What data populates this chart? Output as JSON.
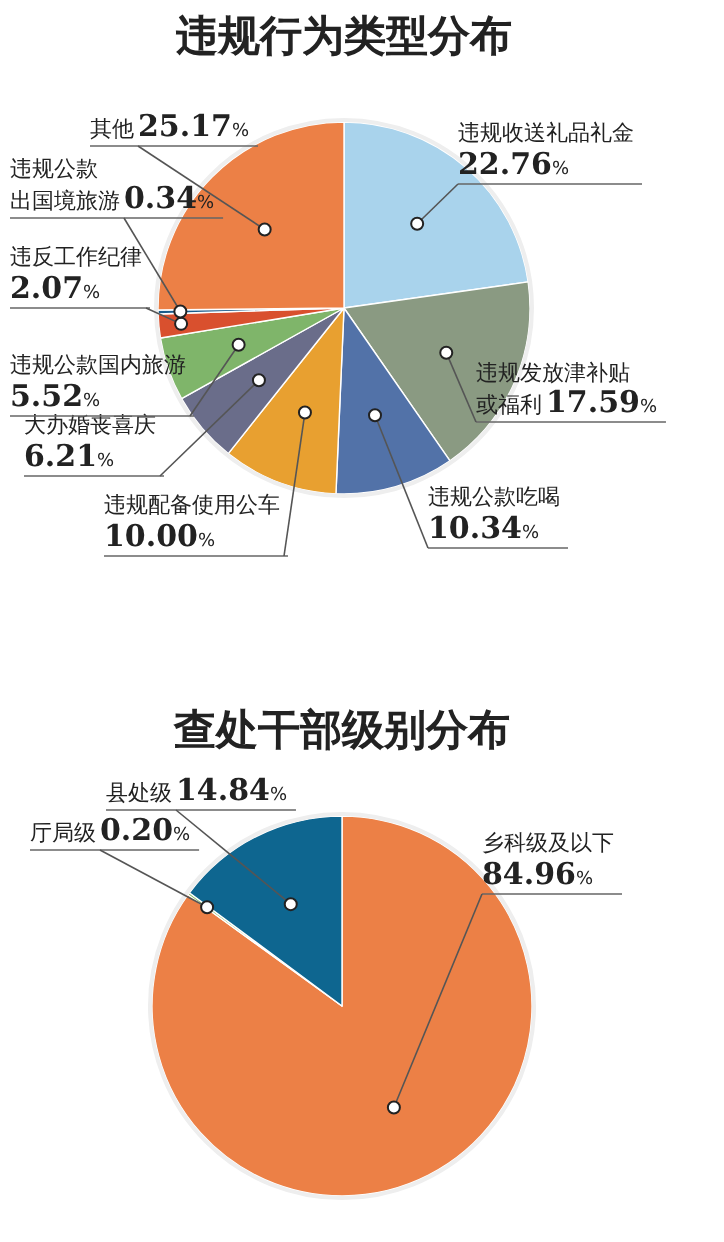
{
  "chart_data": [
    {
      "type": "pie",
      "title": "违规行为类型分布",
      "categories": [
        "违规收送礼品礼金",
        "违规发放津补贴或福利",
        "违规公款吃喝",
        "违规配备使用公车",
        "大办婚丧喜庆",
        "违规公款国内旅游",
        "违反工作纪律",
        "违规公款出国境旅游",
        "其他"
      ],
      "values": [
        22.76,
        17.59,
        10.34,
        10.0,
        6.21,
        5.52,
        2.07,
        0.34,
        25.17
      ],
      "colors": [
        "#a9d3ec",
        "#8a9a82",
        "#5272a8",
        "#e8a030",
        "#6a6d8a",
        "#7fb56a",
        "#d9502e",
        "#1a5b8a",
        "#ec8046"
      ],
      "value_labels": [
        "22.76%",
        "17.59%",
        "10.34%",
        "10.00%",
        "6.21%",
        "5.52%",
        "2.07%",
        "0.34%",
        "25.17%"
      ]
    },
    {
      "type": "pie",
      "title": "查处干部级别分布",
      "categories": [
        "乡科级及以下",
        "厅局级",
        "县处级"
      ],
      "values": [
        84.96,
        0.2,
        14.84
      ],
      "colors": [
        "#ec8046",
        "#8bbf6a",
        "#0e6690"
      ],
      "value_labels": [
        "84.96%",
        "0.20%",
        "14.84%"
      ]
    }
  ]
}
